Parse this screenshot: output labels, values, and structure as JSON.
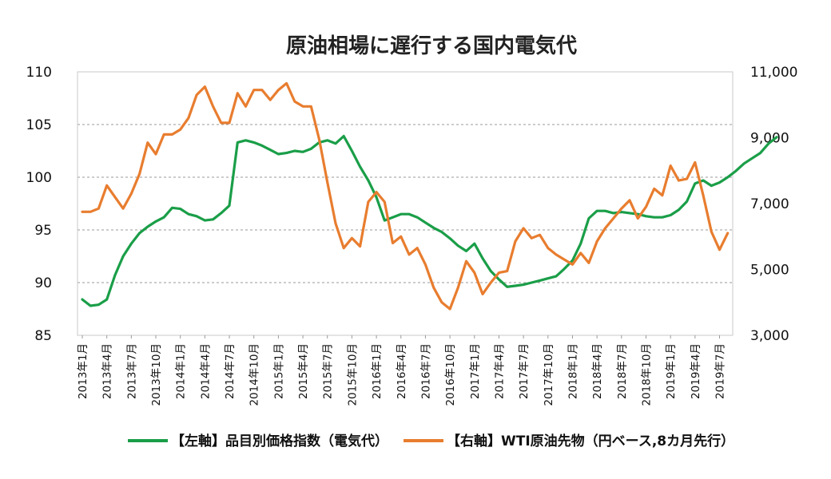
{
  "chart_data": {
    "type": "line",
    "title": "原油相場に遅行する国内電気代",
    "x_labels": [
      "2013年1月",
      "2013年4月",
      "2013年7月",
      "2013年10月",
      "2014年1月",
      "2014年4月",
      "2014年7月",
      "2014年10月",
      "2015年1月",
      "2015年4月",
      "2015年7月",
      "2015年10月",
      "2016年1月",
      "2016年4月",
      "2016年7月",
      "2016年10月",
      "2017年1月",
      "2017年4月",
      "2017年7月",
      "2017年10月",
      "2018年1月",
      "2018年4月",
      "2018年7月",
      "2018年10月",
      "2019年1月",
      "2019年4月",
      "2019年7月"
    ],
    "y_left": {
      "min": 85,
      "max": 110,
      "ticks": [
        "85",
        "90",
        "95",
        "100",
        "105",
        "110"
      ]
    },
    "y_right": {
      "min": 3000,
      "max": 11000,
      "ticks": [
        "3,000",
        "5,000",
        "7,000",
        "9,000",
        "11,000"
      ]
    },
    "grid": true,
    "legend_position": "bottom",
    "colors": {
      "green": "#1a9e48",
      "orange": "#e87d2f"
    },
    "series": [
      {
        "name": "【左軸】品目別価格指数（電気代）",
        "axis": "left",
        "color": "#1a9e48",
        "start_month": "2013年1月",
        "values": [
          88.4,
          87.8,
          87.9,
          88.4,
          90.7,
          92.5,
          93.7,
          94.7,
          95.3,
          95.8,
          96.2,
          97.1,
          97.0,
          96.5,
          96.3,
          95.9,
          96.0,
          96.6,
          97.3,
          103.3,
          103.5,
          103.3,
          103.0,
          102.6,
          102.2,
          102.3,
          102.5,
          102.4,
          102.7,
          103.3,
          103.5,
          103.2,
          103.9,
          102.5,
          101.0,
          99.7,
          98.1,
          95.9,
          96.2,
          96.5,
          96.5,
          96.2,
          95.7,
          95.2,
          94.8,
          94.2,
          93.5,
          93.0,
          93.7,
          92.3,
          91.1,
          90.3,
          89.6,
          89.7,
          89.8,
          90.0,
          90.2,
          90.4,
          90.6,
          91.3,
          92.1,
          93.7,
          96.1,
          96.8,
          96.8,
          96.6,
          96.7,
          96.6,
          96.5,
          96.3,
          96.2,
          96.2,
          96.4,
          96.9,
          97.7,
          99.4,
          99.7,
          99.2,
          99.5,
          100.0,
          100.6,
          101.3,
          101.8,
          102.3,
          103.2,
          103.8
        ]
      },
      {
        "name": "【右軸】WTI原油先物（円ベース,8カ月先行）",
        "axis": "right",
        "color": "#e87d2f",
        "start_month": "2013年1月",
        "values": [
          6750,
          6750,
          6850,
          7550,
          7200,
          6850,
          7300,
          7900,
          8850,
          8500,
          9100,
          9100,
          9250,
          9600,
          10300,
          10550,
          9950,
          9450,
          9450,
          10350,
          9950,
          10450,
          10450,
          10150,
          10450,
          10650,
          10100,
          9950,
          9950,
          8950,
          7650,
          6400,
          5650,
          5950,
          5700,
          7050,
          7350,
          7050,
          5800,
          6000,
          5450,
          5650,
          5150,
          4450,
          4000,
          3800,
          4450,
          5250,
          4900,
          4250,
          4600,
          4900,
          4950,
          5850,
          6250,
          5950,
          6050,
          5650,
          5450,
          5300,
          5150,
          5500,
          5200,
          5850,
          6250,
          6550,
          6850,
          7100,
          6550,
          6900,
          7450,
          7250,
          8150,
          7700,
          7750,
          8250,
          7250,
          6150,
          5600,
          6100
        ]
      }
    ]
  }
}
